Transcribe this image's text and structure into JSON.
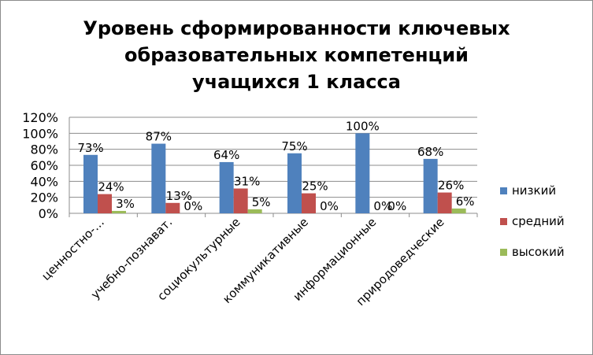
{
  "chart_data": {
    "type": "bar",
    "title": "Уровень сформированности ключевых\nобразовательных компетенций\nучащихся 1 класса",
    "categories": [
      "ценностно-…",
      "учебно-познават.",
      "социокультурные",
      "коммуникативные",
      "информационные",
      "природоведческие"
    ],
    "series": [
      {
        "name": "низкий",
        "values": [
          73,
          87,
          64,
          75,
          100,
          68
        ],
        "labels": [
          "73%",
          "87%",
          "64%",
          "75%",
          "100%",
          "68%"
        ],
        "color": "#4f81bd"
      },
      {
        "name": "средний",
        "values": [
          24,
          13,
          31,
          25,
          0,
          26
        ],
        "labels": [
          "24%",
          "13%",
          "31%",
          "25%",
          "0%",
          "26%"
        ],
        "color": "#c0504d"
      },
      {
        "name": "высокий",
        "values": [
          3,
          0,
          5,
          0,
          0,
          6
        ],
        "labels": [
          "3%",
          "0%",
          "5%",
          "0%",
          "0%",
          "6%"
        ],
        "color": "#9bbb59"
      }
    ],
    "ylim": [
      0,
      120
    ],
    "yticks": [
      "0%",
      "20%",
      "40%",
      "60%",
      "80%",
      "100%",
      "120%"
    ],
    "grid": true,
    "legend": "right"
  }
}
